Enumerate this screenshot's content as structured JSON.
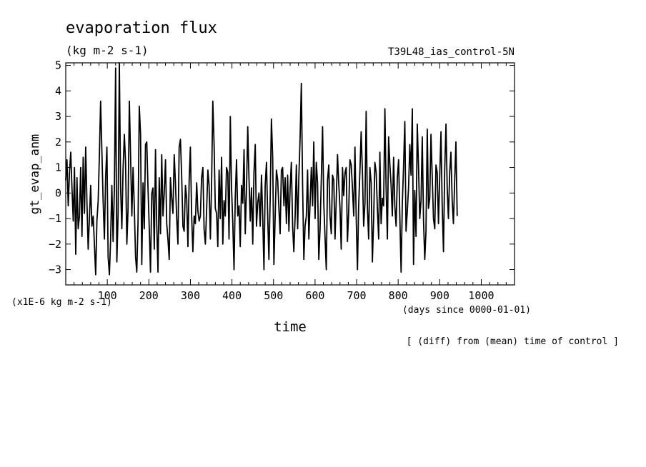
{
  "chart_data": {
    "type": "line",
    "title": "evaporation flux",
    "units": "(kg m-2 s-1)",
    "run_label": "T39L48_ias_control-5N",
    "ylabel": "gt_evap_anm",
    "xlabel": "time",
    "x_units": "(days since 0000-01-01)",
    "y_scale_note": "(x1E-6 kg m-2 s-1)",
    "footnote": "[ (diff) from (mean) time of control ]",
    "xlim": [
      0,
      1080
    ],
    "ylim": [
      -3.6,
      5.1
    ],
    "x_ticks": [
      100,
      200,
      300,
      400,
      500,
      600,
      700,
      800,
      900,
      1000
    ],
    "y_ticks": [
      -3,
      -2,
      -1,
      0,
      1,
      2,
      3,
      4,
      5
    ],
    "grid": false,
    "line_color": "#000000",
    "x_step_days": 3,
    "series": [
      {
        "values": [
          0.5,
          1.3,
          -0.5,
          0.8,
          1.6,
          0.2,
          -1.1,
          1.0,
          -2.4,
          0.6,
          -1.4,
          -0.9,
          1.0,
          -1.7,
          1.4,
          -0.8,
          1.8,
          -0.4,
          -2.2,
          -1.0,
          0.3,
          -1.3,
          -0.9,
          -2.0,
          -3.2,
          -1.1,
          -0.3,
          1.5,
          3.6,
          1.6,
          -0.3,
          -1.8,
          0.6,
          1.8,
          -2.5,
          -3.2,
          -1.8,
          0.3,
          -1.9,
          0.1,
          4.9,
          -2.7,
          -0.8,
          5.1,
          0.2,
          -1.4,
          0.9,
          2.3,
          1.2,
          -2.0,
          -0.6,
          3.6,
          1.5,
          -0.9,
          1.0,
          -0.5,
          -2.5,
          -3.1,
          -1.1,
          3.4,
          2.3,
          -2.8,
          0.4,
          -1.4,
          1.9,
          2.0,
          0.2,
          -1.4,
          -3.1,
          0.0,
          0.2,
          -2.2,
          1.7,
          -1.2,
          -3.1,
          0.6,
          -1.6,
          1.5,
          -0.9,
          0.0,
          1.3,
          -1.2,
          -1.8,
          -2.6,
          0.6,
          -0.2,
          -0.8,
          1.5,
          0.4,
          -1.0,
          -2.0,
          1.8,
          2.1,
          0.7,
          -1.3,
          -1.5,
          0.3,
          -0.2,
          -2.1,
          0.5,
          1.8,
          -0.9,
          -2.3,
          -0.9,
          -1.2,
          0.4,
          -0.7,
          -1.1,
          -0.9,
          0.6,
          1.0,
          -1.4,
          -2.0,
          -0.7,
          0.9,
          0.3,
          -1.8,
          0.4,
          3.6,
          1.9,
          -0.6,
          -0.8,
          -2.1,
          0.9,
          -1.0,
          1.4,
          -2.0,
          -0.3,
          -0.9,
          1.0,
          0.8,
          -1.8,
          3.0,
          0.2,
          -1.2,
          -3.0,
          -0.2,
          1.3,
          -0.9,
          -0.5,
          -2.1,
          0.3,
          -0.4,
          1.7,
          -1.6,
          0.1,
          2.6,
          0.6,
          -1.1,
          0.2,
          -2.0,
          0.8,
          1.9,
          -1.3,
          -0.4,
          0.0,
          -1.3,
          0.7,
          -0.9,
          -3.0,
          0.3,
          1.2,
          -0.9,
          -2.6,
          -0.2,
          2.9,
          1.4,
          -2.8,
          -0.9,
          0.9,
          0.5,
          -0.6,
          -1.6,
          0.9,
          1.0,
          -0.5,
          0.6,
          -1.2,
          0.7,
          -1.5,
          0.2,
          1.2,
          -1.3,
          -2.3,
          -0.9,
          1.1,
          -1.4,
          0.6,
          2.2,
          4.3,
          0.4,
          -2.6,
          -1.3,
          -0.9,
          0.9,
          -1.8,
          -0.4,
          1.0,
          -0.5,
          2.0,
          -1.0,
          1.2,
          0.4,
          -2.6,
          -1.4,
          0.5,
          2.6,
          -0.4,
          -1.7,
          -3.0,
          0.5,
          1.1,
          -0.9,
          -1.6,
          0.7,
          0.5,
          -1.8,
          -0.3,
          1.5,
          0.4,
          -0.6,
          -2.2,
          1.0,
          -0.1,
          0.8,
          1.0,
          -1.9,
          -0.7,
          1.3,
          1.1,
          0.2,
          -0.9,
          1.8,
          -1.0,
          -3.0,
          -0.5,
          0.9,
          2.4,
          0.8,
          -1.3,
          -0.4,
          3.2,
          -0.6,
          -1.8,
          1.0,
          0.4,
          -2.7,
          -1.0,
          1.2,
          0.8,
          -0.6,
          -1.8,
          1.6,
          -1.2,
          -0.2,
          -0.5,
          3.3,
          0.2,
          -1.8,
          2.2,
          1.1,
          0.3,
          -0.9,
          1.4,
          -0.5,
          -1.3,
          0.6,
          1.3,
          -0.9,
          -3.1,
          -0.4,
          1.0,
          2.8,
          -1.5,
          -0.7,
          0.2,
          1.9,
          0.7,
          3.3,
          -2.8,
          0.1,
          -1.7,
          2.7,
          1.0,
          -1.0,
          -0.3,
          2.2,
          -1.1,
          -2.6,
          -1.5,
          2.5,
          -0.6,
          -0.2,
          2.3,
          0.6,
          -1.0,
          -1.4,
          1.1,
          0.8,
          -1.2,
          0.6,
          2.4,
          -0.5,
          -2.3,
          0.9,
          2.7,
          0.2,
          -1.0,
          0.8,
          1.6,
          -0.3,
          -1.2,
          0.5,
          2.0,
          -0.9
        ]
      }
    ]
  }
}
